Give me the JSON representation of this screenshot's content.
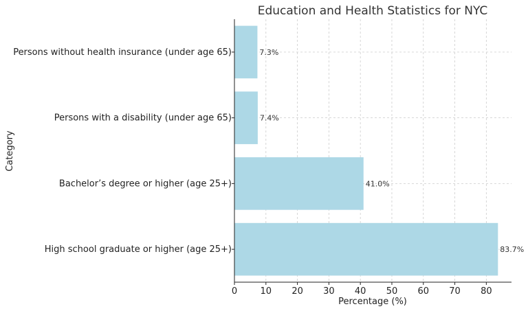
{
  "chart_data": {
    "type": "bar",
    "orientation": "horizontal",
    "title": "Education and Health Statistics for NYC",
    "xlabel": "Percentage (%)",
    "ylabel": "Category",
    "categories": [
      "High school graduate or higher (age 25+)",
      "Bachelor’s degree or higher (age 25+)",
      "Persons with a disability (under age 65)",
      "Persons without health insurance (under age 65)"
    ],
    "values": [
      83.7,
      41.0,
      7.4,
      7.3
    ],
    "data_labels": [
      "83.7%",
      "41.0%",
      "7.4%",
      "7.3%"
    ],
    "xlim": [
      0,
      88
    ],
    "xticks": [
      0,
      10,
      20,
      30,
      40,
      50,
      60,
      70,
      80
    ],
    "grid": true,
    "bar_color": "#add8e6"
  }
}
